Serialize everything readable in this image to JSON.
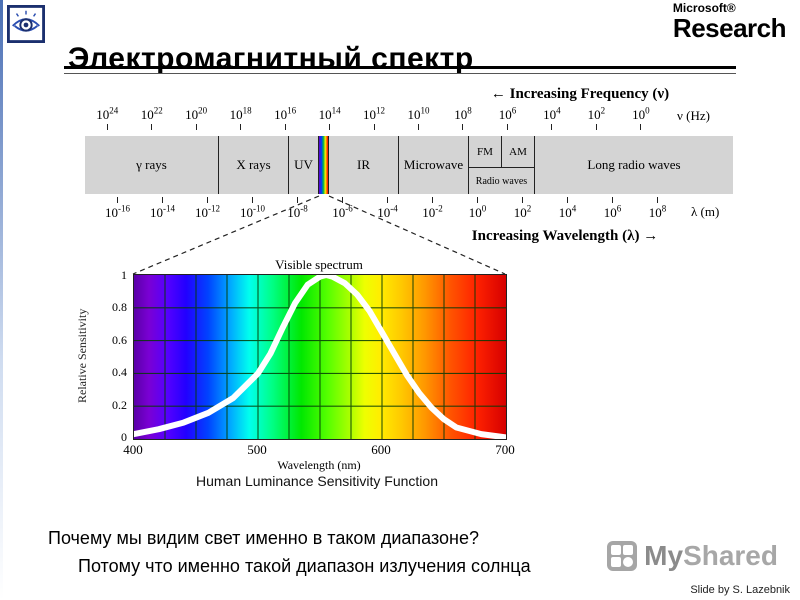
{
  "page": {
    "title": "Электромагнитный спектр",
    "credit": "Slide by S. Lazebnik"
  },
  "logo": {
    "microsoft": "Microsoft®",
    "research": "Research"
  },
  "em_spectrum": {
    "frequency_arrow": "← Increasing Frequency (ν)",
    "frequency_unit": "ν (Hz)",
    "frequency_exponents": [
      24,
      22,
      20,
      18,
      16,
      14,
      12,
      10,
      8,
      6,
      4,
      2,
      0
    ],
    "bands": {
      "gamma": "γ rays",
      "xray": "X rays",
      "uv": "UV",
      "ir": "IR",
      "microwave": "Microwave",
      "fm": "FM",
      "am": "AM",
      "radio": "Radio waves",
      "long_radio": "Long radio waves"
    },
    "wavelength_unit": "λ (m)",
    "wavelength_exponents": [
      -16,
      -14,
      -12,
      -10,
      -8,
      -6,
      -4,
      -2,
      0,
      2,
      4,
      6,
      8
    ],
    "wavelength_arrow": "Increasing Wavelength (λ) →"
  },
  "plot": {
    "title": "Visible spectrum",
    "ylabel": "Relative Sensitivity",
    "xlabel": "Wavelength (nm)",
    "yticks": [
      "1",
      "0.8",
      "0.6",
      "0.4",
      "0.2",
      "0"
    ],
    "xticks": [
      "400",
      "500",
      "600",
      "700"
    ],
    "caption": "Human Luminance Sensitivity Function"
  },
  "chart_data": {
    "type": "line",
    "title": "Visible spectrum",
    "xlabel": "Wavelength (nm)",
    "ylabel": "Relative Sensitivity",
    "xlim": [
      400,
      700
    ],
    "ylim": [
      0,
      1
    ],
    "grid": true,
    "x_grid_step_nm": 25,
    "y_grid_step": 0.2,
    "background": "visible-spectrum rainbow gradient 400-700 nm",
    "series_name": "Human luminance sensitivity function",
    "x": [
      400,
      420,
      440,
      460,
      480,
      500,
      510,
      520,
      530,
      540,
      550,
      555,
      560,
      570,
      580,
      590,
      600,
      610,
      620,
      630,
      640,
      650,
      660,
      680,
      700
    ],
    "y": [
      0.03,
      0.06,
      0.1,
      0.16,
      0.25,
      0.4,
      0.52,
      0.68,
      0.83,
      0.94,
      0.99,
      1.0,
      0.99,
      0.95,
      0.88,
      0.78,
      0.65,
      0.52,
      0.39,
      0.28,
      0.19,
      0.12,
      0.07,
      0.03,
      0.01
    ]
  },
  "text": {
    "question": "Почему мы видим свет именно в таком диапазоне?",
    "answer": "Потому что именно такой диапазон излучения солнца"
  },
  "watermark": {
    "my": "My",
    "shared": "Shared"
  }
}
